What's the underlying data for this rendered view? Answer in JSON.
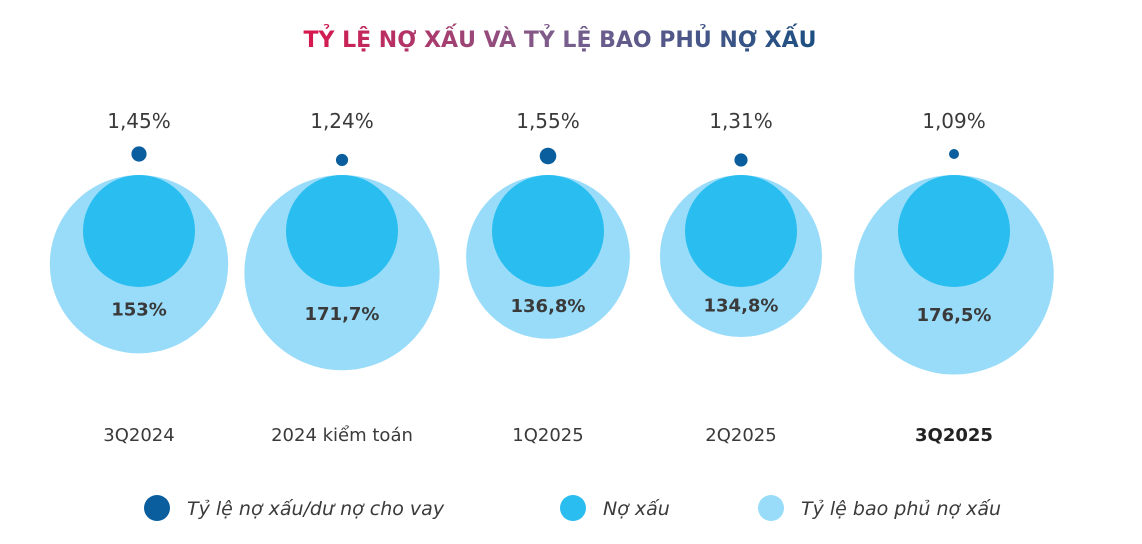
{
  "chart_data": {
    "type": "bubble",
    "title": "TỶ LỆ NỢ XẤU VÀ TỶ LỆ BAO PHỦ NỢ XẤU",
    "categories": [
      "3Q2024",
      "2024 kiểm toán",
      "1Q2025",
      "2Q2025",
      "3Q2025"
    ],
    "highlighted_category": "3Q2025",
    "npl_ratio_labels": [
      "1,45%",
      "1,24%",
      "1,55%",
      "1,31%",
      "1,09%"
    ],
    "npl_ratio": [
      1.45,
      1.24,
      1.55,
      1.31,
      1.09
    ],
    "coverage_ratio_labels": [
      "153%",
      "171,7%",
      "136,8%",
      "134,8%",
      "176,5%"
    ],
    "coverage_ratio": [
      153,
      171.7,
      136.8,
      134.8,
      176.5
    ],
    "legend": [
      {
        "label": "Tỷ lệ nợ xấu/dư nợ cho vay",
        "color": "#0a5e9d"
      },
      {
        "label": "Nợ xấu",
        "color": "#29bdf0"
      },
      {
        "label": "Tỷ lệ bao phủ nợ xấu",
        "color": "#98dcfa"
      }
    ],
    "legend_position": "bottom",
    "colors": {
      "title_start": "#d8174c",
      "title_mid": "#7a5f8e",
      "title_end": "#1b4f82",
      "text": "#3a3a3a"
    }
  }
}
